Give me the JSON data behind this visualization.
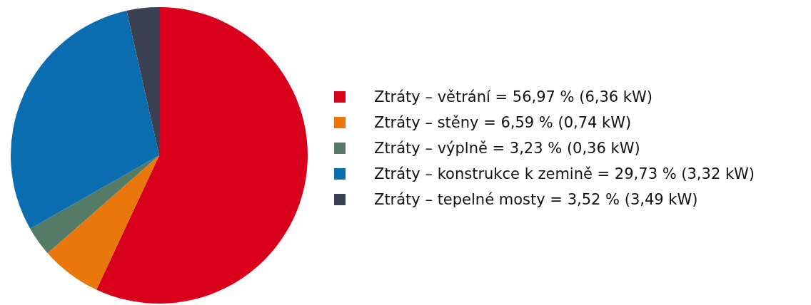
{
  "chart_data": {
    "type": "pie",
    "categories": [
      "Ztráty – větrání = 56,97 % (6,36 kW)",
      "Ztráty – stěny = 6,59 % (0,74 kW)",
      "Ztráty – výplně = 3,23 % (0,36 kW)",
      "Ztráty – konstrukce k zemině = 29,73 % (3,32 kW)",
      "Ztráty – tepelné mosty = 3,52 % (3,49 kW)"
    ],
    "values": [
      56.97,
      6.59,
      3.23,
      29.73,
      3.52
    ],
    "colors": [
      "#d9001b",
      "#e8780c",
      "#557a66",
      "#0a6db0",
      "#3b4052"
    ],
    "legend": "right"
  }
}
